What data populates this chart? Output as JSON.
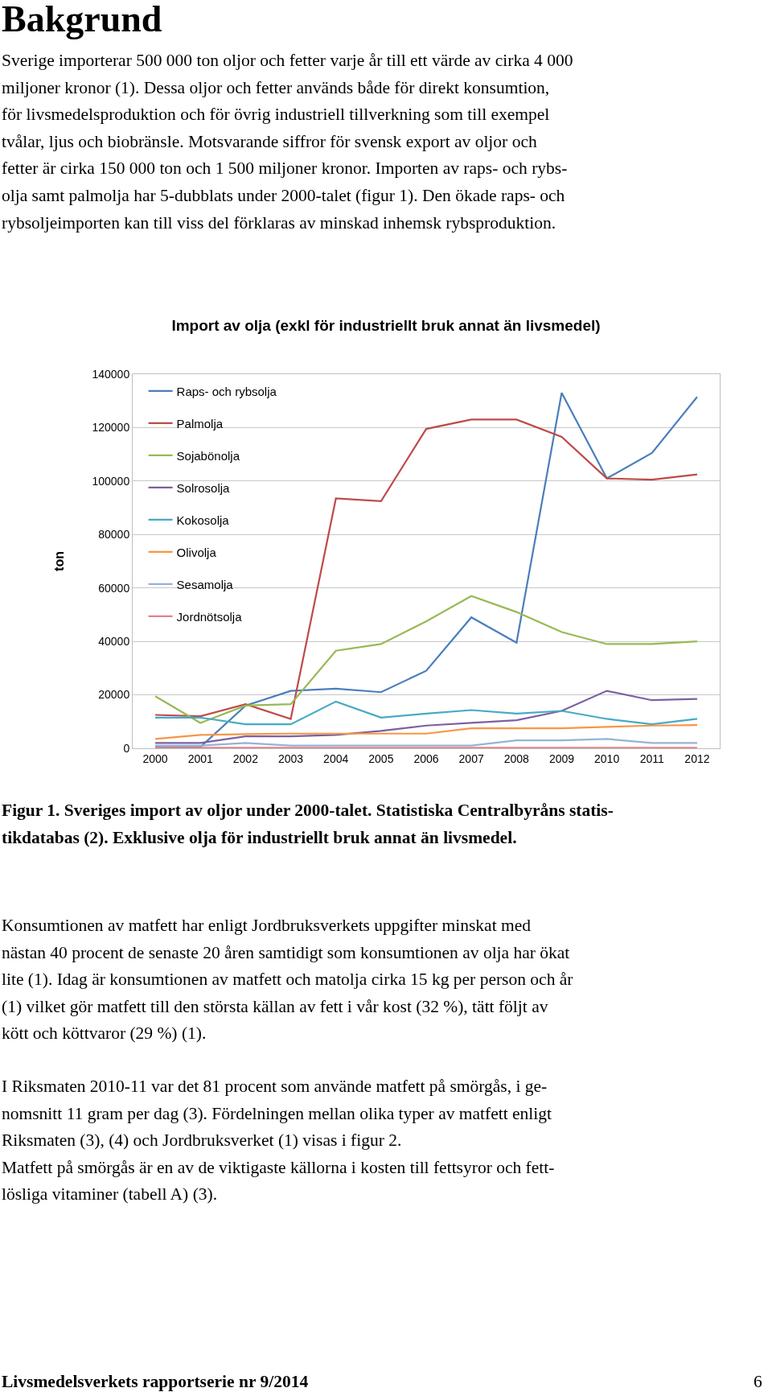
{
  "chart_data": {
    "type": "line",
    "title": "Import av olja (exkl för industriellt bruk annat än livsmedel)",
    "ylabel": "ton",
    "categories": [
      "2000",
      "2001",
      "2002",
      "2003",
      "2004",
      "2005",
      "2006",
      "2007",
      "2008",
      "2009",
      "2010",
      "2011",
      "2012"
    ],
    "series": [
      {
        "name": "Raps- och rybsolja",
        "color": "#4a7ebb",
        "values": [
          500,
          500,
          16000,
          21500,
          22300,
          21000,
          29000,
          49000,
          39500,
          133000,
          101000,
          110500,
          131500
        ]
      },
      {
        "name": "Palmolja",
        "color": "#be4b48",
        "values": [
          12500,
          12000,
          16500,
          11000,
          93500,
          92500,
          119500,
          123000,
          123000,
          116500,
          101000,
          100500,
          102500
        ]
      },
      {
        "name": "Sojabönolja",
        "color": "#98b954",
        "values": [
          19500,
          9500,
          16000,
          16500,
          36500,
          39000,
          47500,
          57000,
          51000,
          43500,
          39000,
          39000,
          40000
        ]
      },
      {
        "name": "Solrosolja",
        "color": "#7d60a0",
        "values": [
          2000,
          2000,
          4500,
          4500,
          5000,
          6500,
          8500,
          9500,
          10500,
          14000,
          21500,
          18000,
          18500
        ]
      },
      {
        "name": "Kokosolja",
        "color": "#46aac5",
        "values": [
          11500,
          11500,
          9000,
          9000,
          17500,
          11500,
          13000,
          14300,
          13000,
          14000,
          11000,
          9000,
          11000
        ]
      },
      {
        "name": "Olivolja",
        "color": "#f79646",
        "values": [
          3500,
          5000,
          5300,
          5500,
          5500,
          5500,
          5500,
          7500,
          7500,
          7500,
          8000,
          8500,
          8700
        ]
      },
      {
        "name": "Sesamolja",
        "color": "#95b3d7",
        "values": [
          1000,
          1000,
          2000,
          1000,
          1000,
          1000,
          1000,
          1000,
          3000,
          3000,
          3500,
          2000,
          2000
        ]
      },
      {
        "name": "Jordnötsolja",
        "color": "#e8808a",
        "values": [
          200,
          200,
          200,
          200,
          200,
          200,
          200,
          200,
          200,
          200,
          200,
          200,
          200
        ]
      }
    ],
    "ylim": [
      0,
      140000
    ],
    "yticks": [
      0,
      20000,
      40000,
      60000,
      80000,
      100000,
      120000,
      140000
    ],
    "grid": "y",
    "legend": "top left",
    "marker": "none",
    "line_style": "solid",
    "annotations": [
      "Bakgrund",
      "Sverige importerar 500 000 ton oljor och fetter varje år till ett värde av cirka 4 000\nmiljoner kronor (1). Dessa oljor och fetter används både för direkt konsumtion,\nför livsmedelsproduktion och för övrig industriell tillverkning som till exempel\ntvålar, ljus och biobränsle. Motsvarande siffror för svensk export av oljor och\nfetter är cirka 150 000 ton och 1 500 miljoner kronor. Importen av raps- och rybs-\nolja samt palmolja har 5-dubblats under 2000-talet (figur 1). Den ökade raps- och\nrybsoljeimporten kan till viss del förklaras av minskad inhemsk rybsproduktion.",
      "Figur 1. Sveriges import av oljor under 2000-talet. Statistiska Centralbyråns statis-\ntikdatabas (2). Exklusive olja för industriellt bruk annat än livsmedel.",
      "Konsumtionen av matfett har enligt Jordbruksverkets uppgifter minskat med\nnästan 40 procent de senaste 20 åren samtidigt som konsumtionen av olja har ökat\nlite (1). Idag är konsumtionen av matfett och matolja cirka 15 kg per person och år\n(1) vilket gör matfett till den största källan av fett i vår kost (32 %), tätt följt av\nkött och köttvaror (29 %) (1).",
      "I Riksmaten 2010-11 var det 81 procent som använde matfett på smörgås, i ge-\nnomsnitt 11 gram per dag (3). Fördelningen mellan olika typer av matfett enligt\nRiksmaten (3), (4) och Jordbruksverket (1) visas i figur 2.\nMatfett på smörgås är en av de viktigaste källorna i kosten till fettsyror och fett-\nlösliga vitaminer (tabell A) (3).",
      "Livsmedelsverkets rapportserie nr 9/2014",
      "6"
    ]
  }
}
